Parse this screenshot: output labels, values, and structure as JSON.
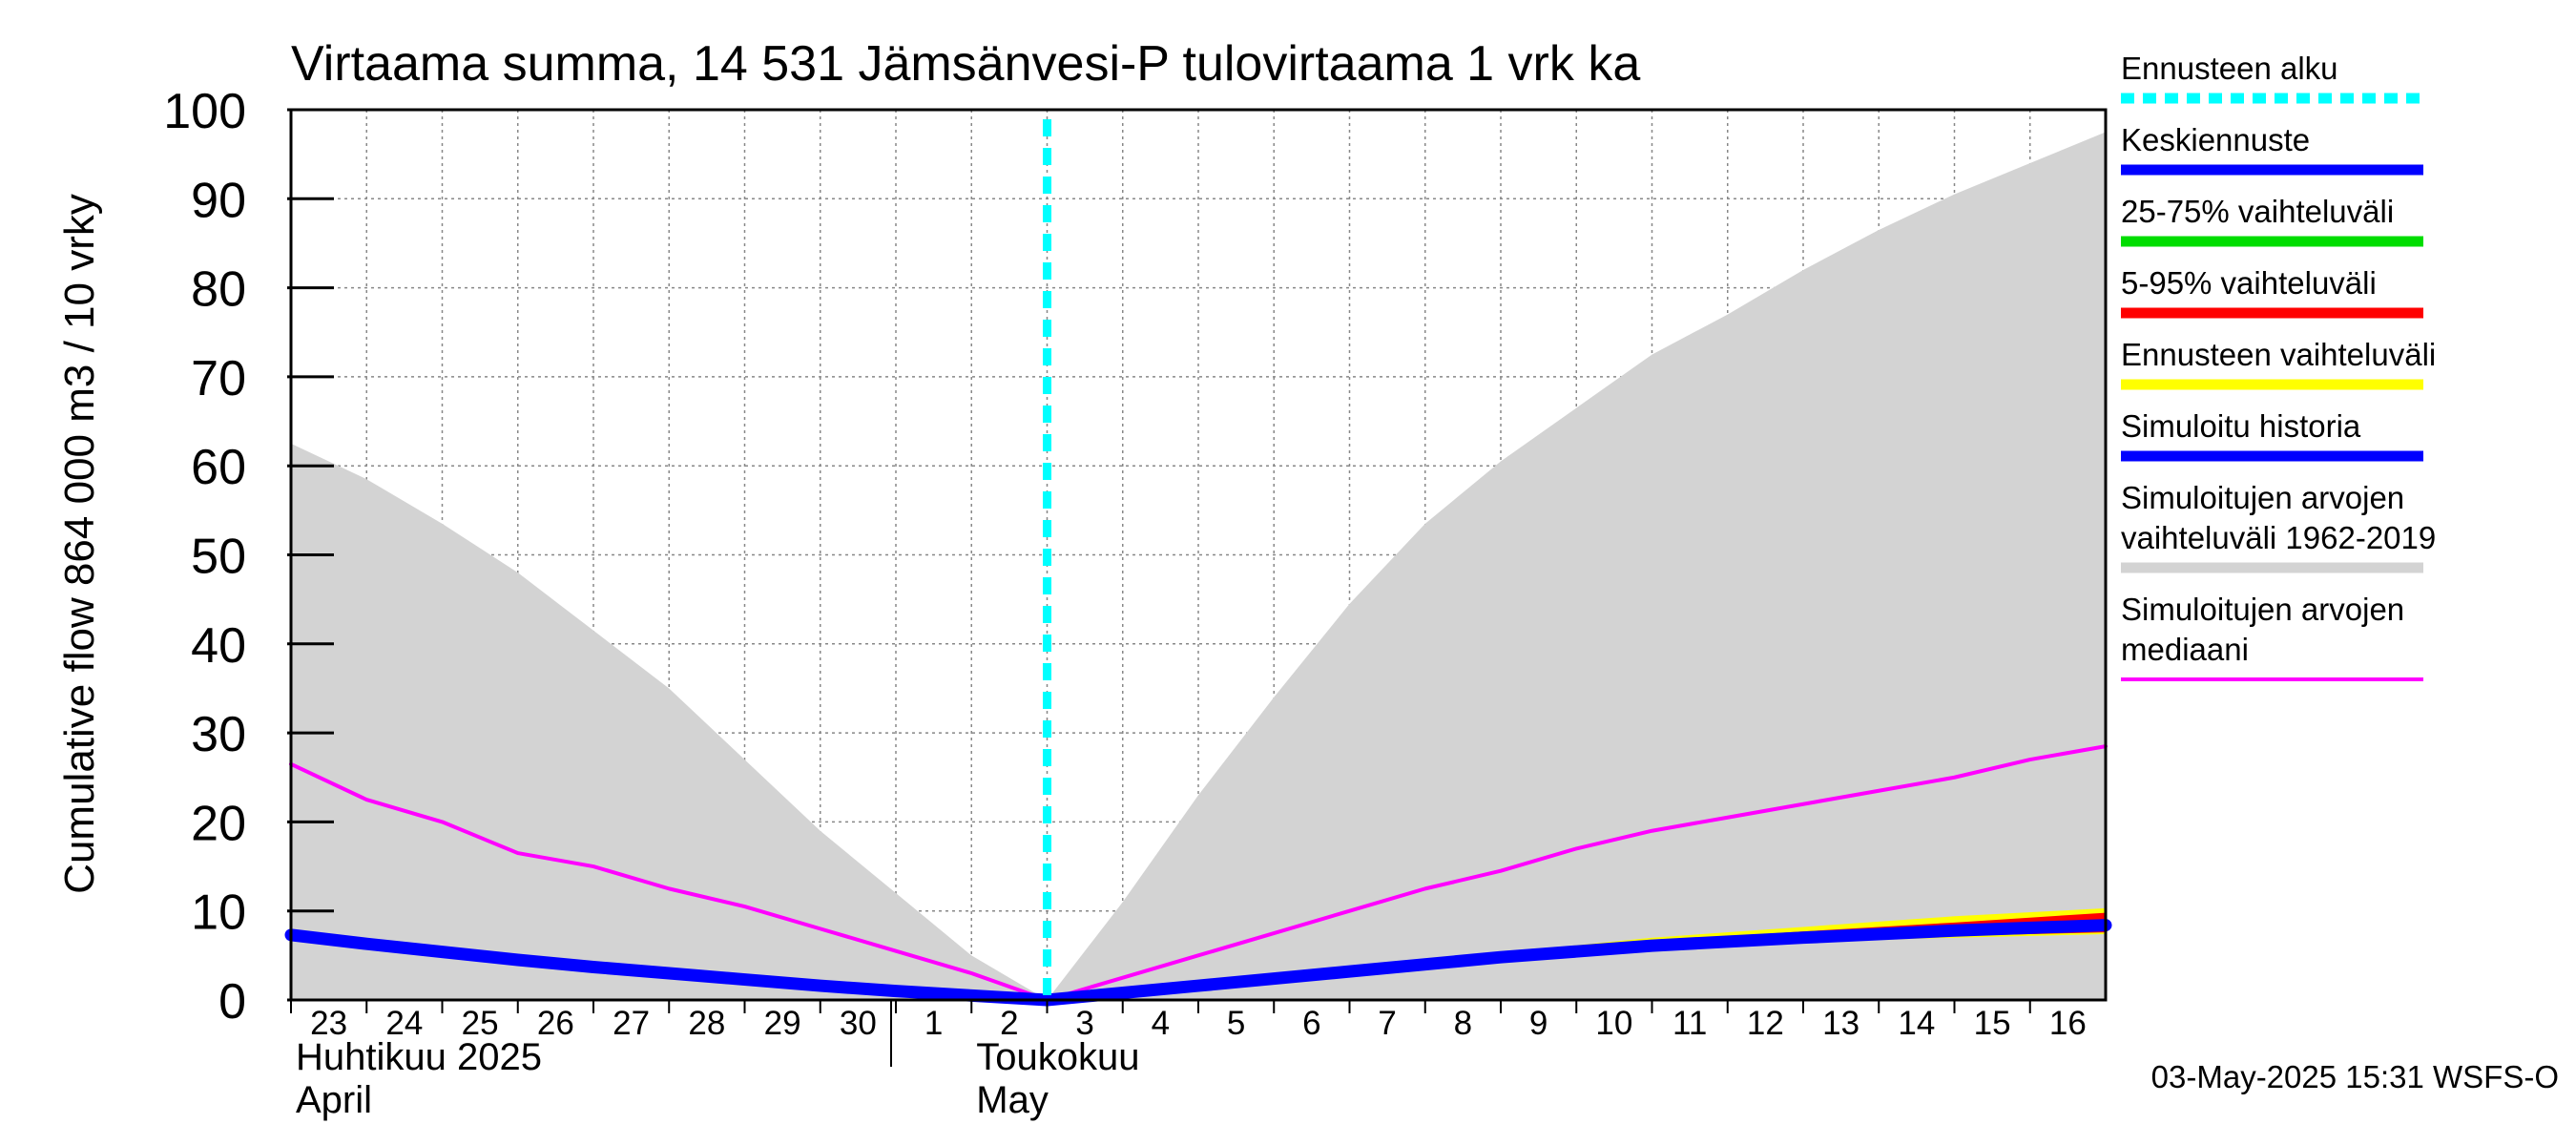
{
  "chart_data": {
    "type": "area",
    "title": "Virtaama summa, 14 531 Jämsänvesi-P tulovirtaama 1 vrk ka",
    "ylabel": "Cumulative flow    864 000 m3 / 10 vrky",
    "ylim": [
      0,
      100
    ],
    "yticks": [
      0,
      10,
      20,
      30,
      40,
      50,
      60,
      70,
      80,
      90,
      100
    ],
    "xlim": [
      0,
      24
    ],
    "grid": true,
    "days": [
      {
        "label": "23",
        "x": 0
      },
      {
        "label": "24",
        "x": 1
      },
      {
        "label": "25",
        "x": 2
      },
      {
        "label": "26",
        "x": 3
      },
      {
        "label": "27",
        "x": 4
      },
      {
        "label": "28",
        "x": 5
      },
      {
        "label": "29",
        "x": 6
      },
      {
        "label": "30",
        "x": 7
      },
      {
        "label": "1",
        "x": 8
      },
      {
        "label": "2",
        "x": 9
      },
      {
        "label": "3",
        "x": 10
      },
      {
        "label": "4",
        "x": 11
      },
      {
        "label": "5",
        "x": 12
      },
      {
        "label": "6",
        "x": 13
      },
      {
        "label": "7",
        "x": 14
      },
      {
        "label": "8",
        "x": 15
      },
      {
        "label": "9",
        "x": 16
      },
      {
        "label": "10",
        "x": 17
      },
      {
        "label": "11",
        "x": 18
      },
      {
        "label": "12",
        "x": 19
      },
      {
        "label": "13",
        "x": 20
      },
      {
        "label": "14",
        "x": 21
      },
      {
        "label": "15",
        "x": 22
      },
      {
        "label": "16",
        "x": 23
      }
    ],
    "month_labels": [
      {
        "fi": "Huhtikuu  2025",
        "en": "April",
        "x": 0
      },
      {
        "fi": "Toukokuu",
        "en": "May",
        "x": 9
      }
    ],
    "month_boundary_x": 8,
    "forecast_start_x": 10,
    "series": [
      {
        "name": "Simuloitujen arvojen vaihteluväli 1962-2019",
        "kind": "band",
        "color": "#d3d3d3",
        "x": [
          0,
          1,
          2,
          3,
          4,
          5,
          6,
          7,
          8,
          9,
          10,
          11,
          12,
          13,
          14,
          15,
          16,
          17,
          18,
          19,
          20,
          21,
          22,
          23,
          24
        ],
        "upper": [
          62.5,
          58.5,
          53.5,
          48,
          41.5,
          35,
          27,
          19,
          12,
          5,
          0,
          11,
          23,
          34,
          44.5,
          53.5,
          60.5,
          66.5,
          72.5,
          77,
          82,
          86.5,
          90.5,
          94,
          97.5
        ],
        "lower": [
          0,
          0,
          0,
          0,
          0,
          0,
          0,
          0,
          0,
          0,
          0,
          0,
          0,
          0,
          0,
          0,
          0,
          0,
          0,
          0,
          0,
          0,
          0,
          0,
          0
        ]
      },
      {
        "name": "Simuloitujen arvojen mediaani",
        "kind": "line",
        "color": "#ff00ff",
        "x": [
          0,
          1,
          2,
          3,
          4,
          5,
          6,
          7,
          8,
          9,
          10,
          11,
          12,
          13,
          14,
          15,
          16,
          17,
          18,
          19,
          20,
          21,
          22,
          23,
          24
        ],
        "values": [
          26.5,
          22.5,
          20,
          16.5,
          15,
          12.5,
          10.5,
          8,
          5.5,
          3,
          0,
          2.5,
          5,
          7.5,
          10,
          12.5,
          14.5,
          17,
          19,
          20.5,
          22,
          23.5,
          25,
          27,
          28.5
        ]
      },
      {
        "name": "Ennusteen vaihteluväli",
        "kind": "band",
        "color": "#ffff00",
        "x": [
          10,
          12,
          14,
          16,
          18,
          20,
          22,
          24
        ],
        "upper": [
          0,
          1.8,
          3.6,
          5.3,
          7,
          8.2,
          9.4,
          10.3
        ],
        "lower": [
          0,
          1.5,
          3,
          4.6,
          5.8,
          6.5,
          7,
          7.4
        ]
      },
      {
        "name": "5-95% vaihteluväli",
        "kind": "band",
        "color": "#ff0000",
        "x": [
          10,
          12,
          14,
          16,
          18,
          20,
          22,
          24
        ],
        "upper": [
          0,
          1.8,
          3.5,
          5.1,
          6.6,
          7.7,
          8.7,
          9.8
        ],
        "lower": [
          0,
          1.5,
          3,
          4.6,
          5.9,
          6.6,
          7.2,
          7.6
        ]
      },
      {
        "name": "25-75% vaihteluväli",
        "kind": "band",
        "color": "#00dd00",
        "x": [
          10,
          12,
          14,
          16,
          18,
          20,
          22,
          24
        ],
        "upper": [
          0,
          1.7,
          3.3,
          4.9,
          6.2,
          7.1,
          8,
          8.8
        ],
        "lower": [
          0,
          1.6,
          3.1,
          4.7,
          6,
          6.8,
          7.5,
          8
        ]
      },
      {
        "name": "Keskiennuste",
        "kind": "line",
        "color": "#0000ff",
        "x": [
          10,
          12,
          14,
          16,
          18,
          20,
          22,
          24
        ],
        "values": [
          0,
          1.6,
          3.2,
          4.8,
          6.1,
          7,
          7.8,
          8.4
        ]
      },
      {
        "name": "Simuloitu historia",
        "kind": "line",
        "color": "#0000ff",
        "x": [
          0,
          1,
          2,
          3,
          4,
          5,
          6,
          7,
          8,
          9,
          10
        ],
        "values": [
          7.3,
          6.3,
          5.4,
          4.5,
          3.7,
          3,
          2.3,
          1.6,
          1,
          0.5,
          0
        ]
      }
    ],
    "legend": {
      "position": "right",
      "entries": [
        {
          "lines": [
            "Ennusteen alku"
          ],
          "color": "#00ffff",
          "style": "dashed"
        },
        {
          "lines": [
            "Keskiennuste"
          ],
          "color": "#0000ff",
          "style": "solid"
        },
        {
          "lines": [
            "25-75% vaihteluväli"
          ],
          "color": "#00dd00",
          "style": "solid"
        },
        {
          "lines": [
            "5-95% vaihteluväli"
          ],
          "color": "#ff0000",
          "style": "solid"
        },
        {
          "lines": [
            "Ennusteen vaihteluväli"
          ],
          "color": "#ffff00",
          "style": "solid"
        },
        {
          "lines": [
            "Simuloitu historia"
          ],
          "color": "#0000ff",
          "style": "solid"
        },
        {
          "lines": [
            "Simuloitujen arvojen",
            "vaihteluväli 1962-2019"
          ],
          "color": "#d3d3d3",
          "style": "solid"
        },
        {
          "lines": [
            "Simuloitujen arvojen",
            "mediaani"
          ],
          "color": "#ff00ff",
          "style": "thin"
        }
      ]
    },
    "footer": "03-May-2025 15:31 WSFS-O"
  }
}
